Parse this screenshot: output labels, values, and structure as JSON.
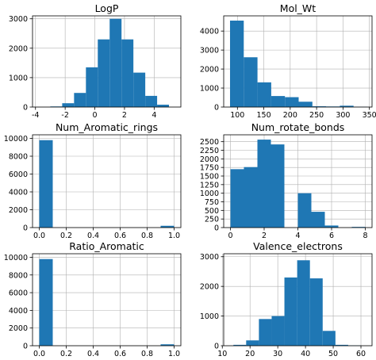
{
  "chart_data": [
    {
      "type": "bar",
      "title": "LogP",
      "xlabel": "",
      "ylabel": "",
      "xlim": [
        -4.2,
        5.8
      ],
      "ylim": [
        0,
        3100
      ],
      "bin_edges": [
        -3.0,
        -2.2,
        -1.4,
        -0.6,
        0.2,
        1.0,
        1.8,
        2.6,
        3.4,
        4.2,
        5.0
      ],
      "values": [
        20,
        130,
        480,
        1350,
        2300,
        3000,
        2300,
        1170,
        380,
        80
      ],
      "xticks": [
        -4,
        -2,
        0,
        2,
        4
      ],
      "yticks": [
        0,
        1000,
        2000,
        3000
      ],
      "grid": true,
      "color": "#1f77b4"
    },
    {
      "type": "bar",
      "title": "Mol_Wt",
      "xlabel": "",
      "ylabel": "",
      "xlim": [
        74,
        355
      ],
      "ylim": [
        0,
        4800
      ],
      "bin_edges": [
        86,
        112,
        138,
        164,
        190,
        216,
        242,
        268,
        294,
        320,
        346
      ],
      "values": [
        4550,
        2620,
        1300,
        580,
        520,
        280,
        40,
        30,
        70,
        10
      ],
      "xticks": [
        100,
        150,
        200,
        250,
        300,
        350
      ],
      "yticks": [
        0,
        1000,
        2000,
        3000,
        4000
      ],
      "grid": true,
      "color": "#1f77b4"
    },
    {
      "type": "bar",
      "title": "Num_Aromatic_rings",
      "xlabel": "",
      "ylabel": "",
      "xlim": [
        -0.05,
        1.05
      ],
      "ylim": [
        0,
        10400
      ],
      "bin_edges": [
        0.0,
        0.1,
        0.2,
        0.3,
        0.4,
        0.5,
        0.6,
        0.7,
        0.8,
        0.9,
        1.0
      ],
      "values": [
        9800,
        0,
        0,
        0,
        0,
        0,
        0,
        0,
        0,
        200
      ],
      "xticks": [
        0.0,
        0.2,
        0.4,
        0.6,
        0.8,
        1.0
      ],
      "yticks": [
        0,
        2000,
        4000,
        6000,
        8000,
        10000
      ],
      "grid": true,
      "color": "#1f77b4"
    },
    {
      "type": "bar",
      "title": "Num_rotate_bonds",
      "xlabel": "",
      "ylabel": "",
      "xlim": [
        -0.4,
        8.4
      ],
      "ylim": [
        0,
        2700
      ],
      "bin_edges": [
        0.0,
        0.8,
        1.6,
        2.4,
        3.2,
        4.0,
        4.8,
        5.6,
        6.4,
        7.2,
        8.0
      ],
      "values": [
        1700,
        1760,
        2560,
        2420,
        0,
        1000,
        460,
        60,
        0,
        20
      ],
      "xticks": [
        0,
        2,
        4,
        6,
        8
      ],
      "yticks": [
        0,
        250,
        500,
        750,
        1000,
        1250,
        1500,
        1750,
        2000,
        2250,
        2500
      ],
      "grid": true,
      "color": "#1f77b4"
    },
    {
      "type": "bar",
      "title": "Ratio_Aromatic",
      "xlabel": "",
      "ylabel": "",
      "xlim": [
        -0.05,
        1.05
      ],
      "ylim": [
        0,
        10400
      ],
      "bin_edges": [
        0.0,
        0.1,
        0.2,
        0.3,
        0.4,
        0.5,
        0.6,
        0.7,
        0.8,
        0.9,
        1.0
      ],
      "values": [
        9800,
        0,
        0,
        0,
        0,
        0,
        0,
        0,
        0,
        160
      ],
      "xticks": [
        0.0,
        0.2,
        0.4,
        0.6,
        0.8,
        1.0
      ],
      "yticks": [
        0,
        2000,
        4000,
        6000,
        8000,
        10000
      ],
      "grid": true,
      "color": "#1f77b4"
    },
    {
      "type": "bar",
      "title": "Valence_electrons",
      "xlabel": "",
      "ylabel": "",
      "xlim": [
        10.5,
        64
      ],
      "ylim": [
        0,
        3100
      ],
      "bin_edges": [
        14,
        18.6,
        23.2,
        27.8,
        32.4,
        37,
        41.6,
        46.2,
        50.8,
        55.4,
        60
      ],
      "values": [
        30,
        180,
        900,
        1000,
        2300,
        2880,
        2270,
        500,
        30,
        10
      ],
      "xticks": [
        10,
        20,
        30,
        40,
        50,
        60
      ],
      "yticks": [
        0,
        1000,
        2000,
        3000
      ],
      "grid": true,
      "color": "#1f77b4"
    }
  ]
}
